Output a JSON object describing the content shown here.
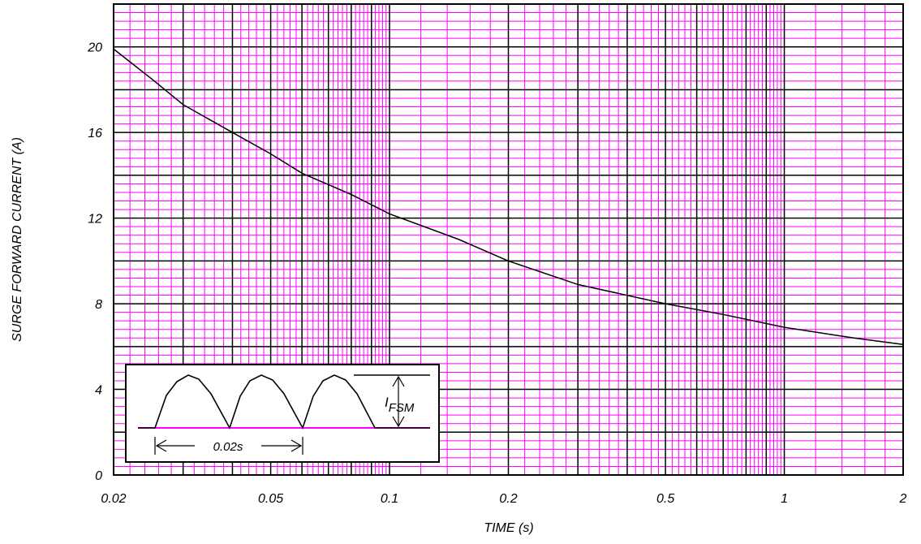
{
  "chart_data": {
    "type": "line",
    "title": "",
    "xlabel": "TIME (s)",
    "ylabel": "SURGE FORWARD CURRENT (A)",
    "x_scale": "log",
    "xlim": [
      0.02,
      2
    ],
    "ylim": [
      0,
      22
    ],
    "x_ticks": [
      0.02,
      0.05,
      0.1,
      0.2,
      0.5,
      1,
      2
    ],
    "x_tick_labels": [
      "0.02",
      "0.05",
      "0.1",
      "0.2",
      "0.5",
      "1",
      "2"
    ],
    "y_ticks": [
      0,
      4,
      8,
      12,
      16,
      20
    ],
    "y_tick_labels": [
      "0",
      "4",
      "8",
      "12",
      "16",
      "20"
    ],
    "grid": true,
    "colors": {
      "minor_grid": "#ff00ff",
      "major_grid": "#000000",
      "curve": "#000000"
    },
    "series": [
      {
        "x": [
          0.02,
          0.025,
          0.03,
          0.04,
          0.05,
          0.06,
          0.08,
          0.1,
          0.15,
          0.2,
          0.3,
          0.5,
          0.7,
          1,
          1.5,
          2
        ],
        "y": [
          19.9,
          18.5,
          17.3,
          16.0,
          15.0,
          14.1,
          13.1,
          12.2,
          11.0,
          10.0,
          8.9,
          8.0,
          7.5,
          6.9,
          6.4,
          6.1
        ]
      }
    ],
    "inset": {
      "period_label": "0.02s",
      "amplitude_label_main": "I",
      "amplitude_label_sub": "FSM"
    }
  }
}
